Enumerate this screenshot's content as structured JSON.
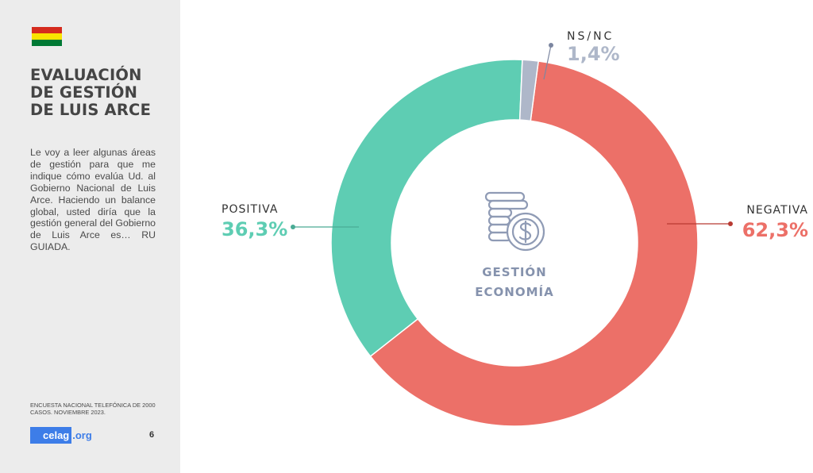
{
  "sidebar": {
    "flag": {
      "colors": [
        "#d52b1e",
        "#f9e300",
        "#007934"
      ],
      "icon": "bolivia-flag-icon"
    },
    "title_lines": [
      "EVALUACIÓN",
      "DE GESTIÓN",
      "DE LUIS ARCE"
    ],
    "description": "Le voy a leer algunas áreas de gestión para que me indique cómo evalúa Ud. al Gobierno Nacional de Luis Arce. Haciendo un balance global, usted diría que la gestión general del Gobierno de Luis Arce es… RU GUIADA.",
    "source": "ENCUESTA NACIONAL TELEFÓNICA DE 2000 CASOS. NOVIEMBRE 2023.",
    "logo": {
      "main": "celag",
      "tail": ".org"
    },
    "page_number": "6"
  },
  "chart_data": {
    "type": "pie",
    "variant": "donut",
    "center_icon": "coins-dollar-icon",
    "center_label_lines": [
      "GESTIÓN",
      "ECONOMÍA"
    ],
    "slices": [
      {
        "name": "NEGATIVA",
        "label": "62,3%",
        "value": 62.3,
        "color": "#ec7068"
      },
      {
        "name": "POSITIVA",
        "label": "36,3%",
        "value": 36.3,
        "color": "#5ecdb3"
      },
      {
        "name": "NS/NC",
        "label": "1,4%",
        "value": 1.4,
        "color": "#aeb7c9"
      }
    ]
  }
}
